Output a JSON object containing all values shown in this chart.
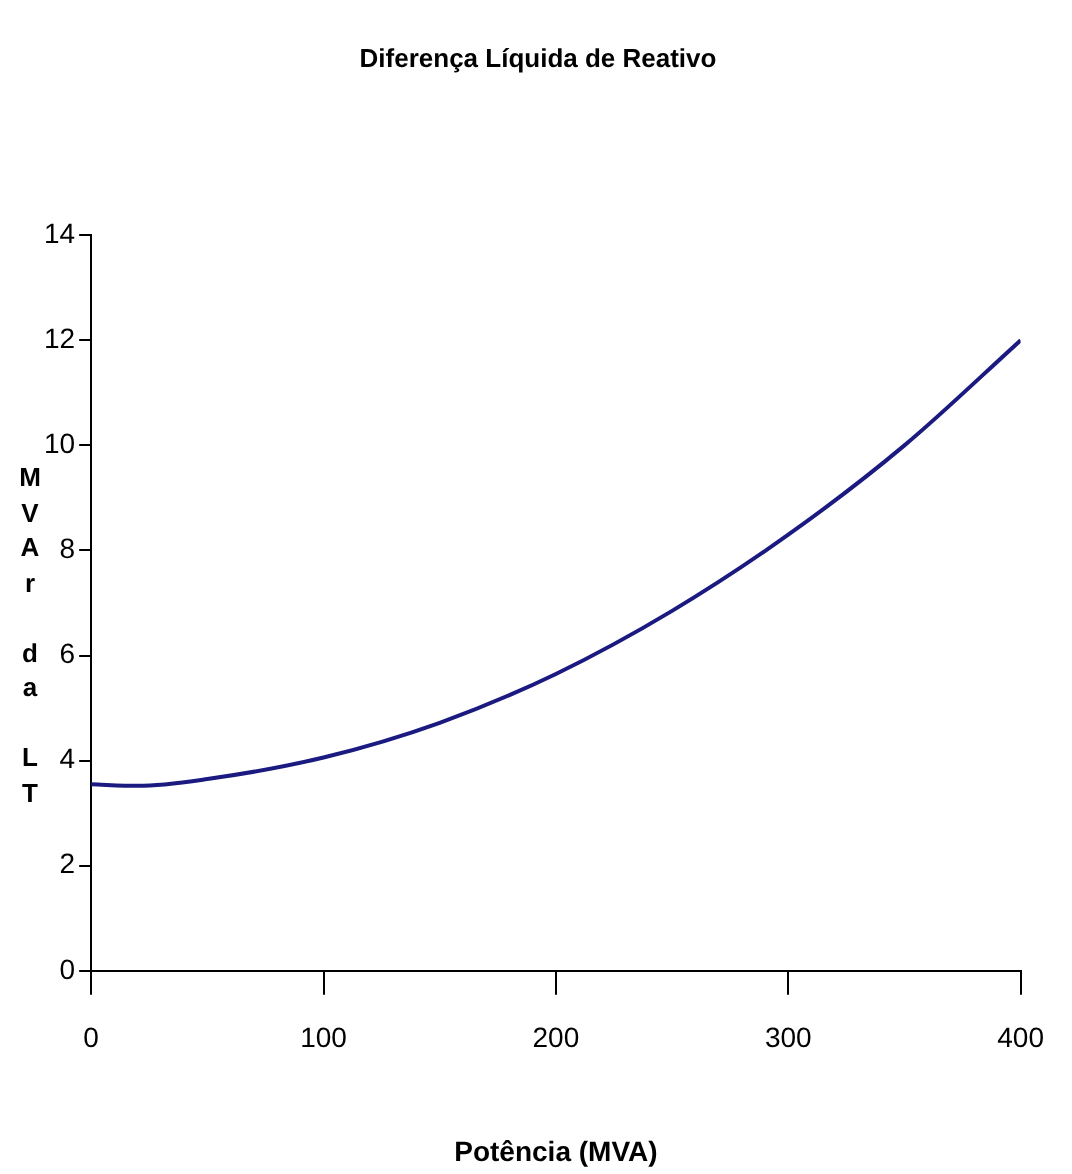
{
  "chart_data": {
    "type": "line",
    "title": "Diferença Líquida de Reativo",
    "xlabel": "Potência (MVA)",
    "ylabel": "MVAr da LT",
    "x": [
      0,
      20,
      50,
      100,
      150,
      200,
      250,
      300,
      350,
      400
    ],
    "series": [
      {
        "color": "#1a1a80",
        "values": [
          3.55,
          3.52,
          3.65,
          4.06,
          4.72,
          5.65,
          6.85,
          8.3,
          10.0,
          12.0
        ]
      }
    ],
    "xlim": [
      0,
      400
    ],
    "xticks": [
      0,
      100,
      200,
      300,
      400
    ],
    "ylim": [
      0,
      14
    ],
    "yticks": [
      0,
      2,
      4,
      6,
      8,
      10,
      12,
      14
    ],
    "grid": false,
    "legend": false,
    "marker": "none",
    "line_style": "solid"
  }
}
